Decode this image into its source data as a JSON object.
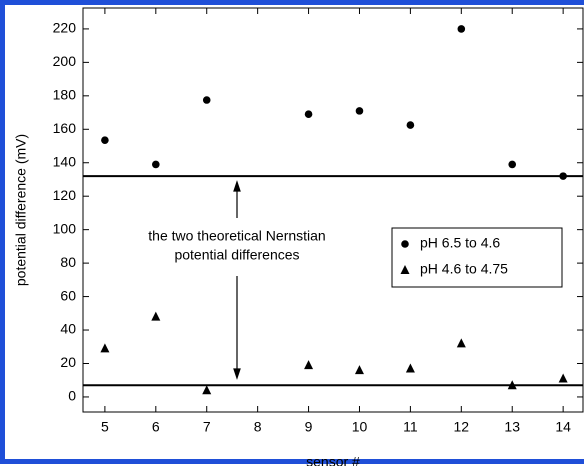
{
  "chart_data": {
    "type": "scatter",
    "x_label": "sensor #",
    "y_label": "potential difference (mV)",
    "x": [
      5,
      6,
      7,
      9,
      10,
      11,
      12,
      13,
      14
    ],
    "series": [
      {
        "name": "pH 6.5 to 4.6",
        "marker": "circle",
        "color": "#000000",
        "values": [
          153.5,
          139,
          177.5,
          169,
          171,
          162.5,
          220,
          139,
          132
        ]
      },
      {
        "name": "pH 4.6 to 4.75",
        "marker": "triangle",
        "color": "#000000",
        "values": [
          29,
          48,
          4,
          19,
          16,
          17,
          32,
          7,
          11
        ]
      }
    ],
    "reference_lines": [
      132,
      7
    ],
    "annotation": [
      "the two theoretical Nernstian",
      "potential differences"
    ],
    "xlim": [
      4.57,
      14.39
    ],
    "xticks": [
      5,
      6,
      7,
      8,
      9,
      10,
      11,
      12,
      13,
      14
    ],
    "ylim": [
      -9,
      232.5
    ],
    "yticks": [
      0,
      20,
      40,
      60,
      80,
      100,
      120,
      140,
      160,
      180,
      200,
      220
    ],
    "legend": "right"
  }
}
